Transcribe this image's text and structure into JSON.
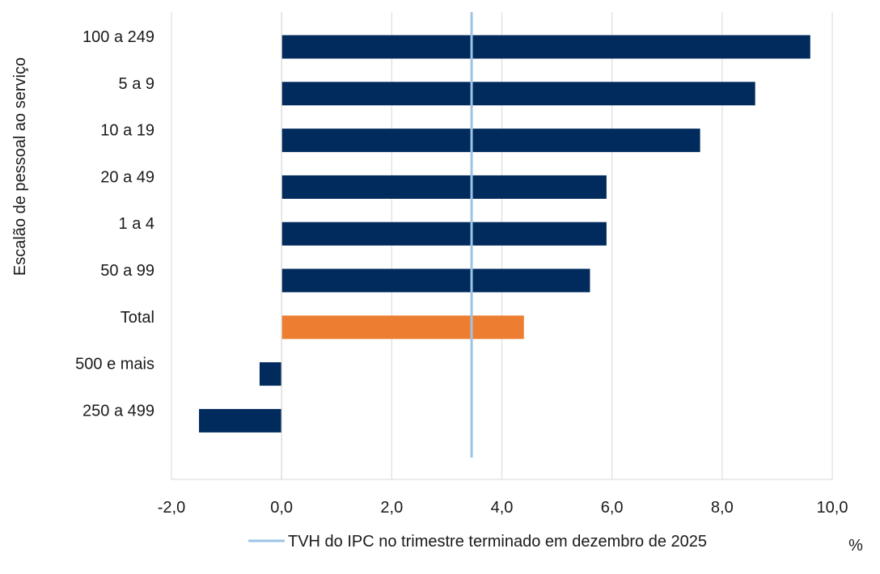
{
  "chart_data": {
    "type": "bar",
    "orientation": "horizontal",
    "ylabel": "Escalão de pessoal ao serviço",
    "unit": "%",
    "categories": [
      "100 a 249",
      "5 a 9",
      "10 a 19",
      "20 a 49",
      "1 a 4",
      "50 a 99",
      "Total",
      "500 e mais",
      "250 a 499"
    ],
    "values": [
      9.6,
      8.6,
      7.6,
      5.9,
      5.9,
      5.6,
      4.4,
      -0.4,
      -1.5
    ],
    "highlight_category": "Total",
    "xlim": [
      -2.0,
      10.0
    ],
    "xticks": [
      "-2,0",
      "0,0",
      "2,0",
      "4,0",
      "6,0",
      "8,0",
      "10,0"
    ],
    "reference_line": {
      "value": 3.45,
      "label": "TVH do IPC no trimestre terminado em dezembro de 2025"
    },
    "grid": "vertical",
    "legend_position": "bottom",
    "colors": {
      "bar": "#002b5c",
      "highlight": "#ed7d31",
      "reference": "#9dc3e6",
      "grid": "#d9d9d9"
    }
  }
}
